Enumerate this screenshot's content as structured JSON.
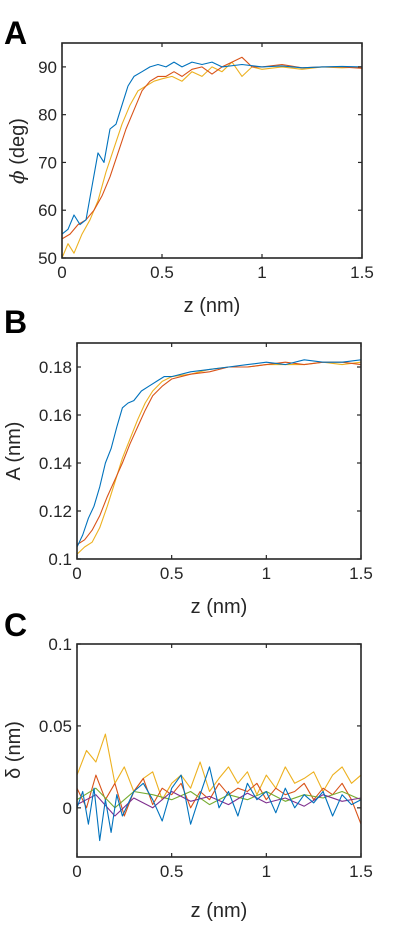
{
  "colors": {
    "blue": "#0072BD",
    "orange": "#D95319",
    "yellow": "#EDB120",
    "purple": "#7E2F8E",
    "green": "#77AC30"
  },
  "chart_data": [
    {
      "panel": "A",
      "type": "line",
      "xlabel": "z (nm)",
      "ylabel_symbol": "ϕ",
      "ylabel_rest": " (deg)",
      "xlim": [
        0,
        1.5
      ],
      "ylim": [
        50,
        95
      ],
      "xticks": [
        0,
        0.5,
        1,
        1.5
      ],
      "xtick_labels": [
        "0",
        "0.5",
        "1",
        "1.5"
      ],
      "yticks": [
        50,
        60,
        70,
        80,
        90
      ],
      "ytick_labels": [
        "50",
        "60",
        "70",
        "80",
        "90"
      ],
      "grid": false,
      "series": [
        {
          "color": "yellow",
          "x": [
            0.0,
            0.03,
            0.06,
            0.1,
            0.14,
            0.18,
            0.22,
            0.26,
            0.3,
            0.34,
            0.38,
            0.42,
            0.46,
            0.5,
            0.55,
            0.6,
            0.65,
            0.7,
            0.75,
            0.8,
            0.85,
            0.9,
            0.95,
            1.0,
            1.1,
            1.2,
            1.3,
            1.4,
            1.5
          ],
          "y": [
            50,
            53,
            51,
            55,
            58,
            62,
            68,
            73,
            78,
            82,
            85,
            86,
            87,
            87.5,
            88,
            87,
            89,
            88,
            90,
            89,
            91,
            88,
            90,
            89.5,
            90,
            89.5,
            90,
            89.8,
            90
          ]
        },
        {
          "color": "orange",
          "x": [
            0.0,
            0.04,
            0.08,
            0.12,
            0.16,
            0.2,
            0.24,
            0.28,
            0.32,
            0.36,
            0.4,
            0.44,
            0.48,
            0.52,
            0.56,
            0.6,
            0.65,
            0.7,
            0.75,
            0.8,
            0.85,
            0.9,
            0.95,
            1.0,
            1.1,
            1.2,
            1.3,
            1.4,
            1.5
          ],
          "y": [
            54,
            55,
            57,
            58,
            60,
            63,
            67,
            72,
            77,
            81,
            85,
            87,
            88,
            88,
            89,
            88,
            89.5,
            90,
            88.5,
            90,
            91,
            92,
            90,
            90,
            90.5,
            89.8,
            90,
            90,
            89.7
          ]
        },
        {
          "color": "blue",
          "x": [
            0.0,
            0.03,
            0.06,
            0.09,
            0.12,
            0.15,
            0.18,
            0.21,
            0.24,
            0.27,
            0.3,
            0.33,
            0.36,
            0.4,
            0.44,
            0.48,
            0.52,
            0.56,
            0.6,
            0.65,
            0.7,
            0.75,
            0.8,
            0.9,
            1.0,
            1.1,
            1.2,
            1.3,
            1.4,
            1.5
          ],
          "y": [
            55,
            56,
            59,
            57,
            58,
            65,
            72,
            70,
            77,
            78,
            82,
            86,
            88,
            89,
            90,
            90.5,
            90,
            91,
            90,
            91,
            90.5,
            91,
            90,
            90.5,
            90,
            90.2,
            89.8,
            90,
            90.1,
            90
          ]
        }
      ]
    },
    {
      "panel": "B",
      "type": "line",
      "xlabel": "z (nm)",
      "ylabel": "A (nm)",
      "xlim": [
        0,
        1.5
      ],
      "ylim": [
        0.1,
        0.19
      ],
      "xticks": [
        0,
        0.5,
        1,
        1.5
      ],
      "xtick_labels": [
        "0",
        "0.5",
        "1",
        "1.5"
      ],
      "yticks": [
        0.1,
        0.12,
        0.14,
        0.16,
        0.18
      ],
      "ytick_labels": [
        "0.1",
        "0.12",
        "0.14",
        "0.16",
        "0.18"
      ],
      "grid": false,
      "series": [
        {
          "color": "yellow",
          "x": [
            0.0,
            0.04,
            0.08,
            0.12,
            0.16,
            0.2,
            0.24,
            0.28,
            0.32,
            0.36,
            0.4,
            0.45,
            0.5,
            0.6,
            0.7,
            0.8,
            0.9,
            1.0,
            1.1,
            1.2,
            1.3,
            1.4,
            1.5
          ],
          "y": [
            0.102,
            0.105,
            0.107,
            0.113,
            0.122,
            0.132,
            0.142,
            0.15,
            0.158,
            0.165,
            0.17,
            0.174,
            0.176,
            0.177,
            0.179,
            0.18,
            0.18,
            0.181,
            0.181,
            0.181,
            0.182,
            0.181,
            0.182
          ]
        },
        {
          "color": "orange",
          "x": [
            0.0,
            0.04,
            0.08,
            0.12,
            0.16,
            0.2,
            0.24,
            0.28,
            0.32,
            0.36,
            0.4,
            0.45,
            0.5,
            0.6,
            0.7,
            0.8,
            0.9,
            1.0,
            1.1,
            1.2,
            1.3,
            1.4,
            1.5
          ],
          "y": [
            0.106,
            0.108,
            0.112,
            0.118,
            0.126,
            0.133,
            0.14,
            0.148,
            0.155,
            0.162,
            0.168,
            0.172,
            0.175,
            0.177,
            0.178,
            0.18,
            0.18,
            0.181,
            0.182,
            0.181,
            0.182,
            0.182,
            0.181
          ]
        },
        {
          "color": "blue",
          "x": [
            0.0,
            0.03,
            0.06,
            0.09,
            0.12,
            0.15,
            0.18,
            0.21,
            0.24,
            0.27,
            0.3,
            0.34,
            0.38,
            0.42,
            0.46,
            0.5,
            0.6,
            0.7,
            0.8,
            0.9,
            1.0,
            1.1,
            1.2,
            1.3,
            1.4,
            1.5
          ],
          "y": [
            0.105,
            0.11,
            0.117,
            0.122,
            0.13,
            0.14,
            0.146,
            0.155,
            0.163,
            0.165,
            0.166,
            0.17,
            0.172,
            0.174,
            0.176,
            0.176,
            0.178,
            0.179,
            0.18,
            0.181,
            0.182,
            0.181,
            0.183,
            0.182,
            0.182,
            0.183
          ]
        }
      ]
    },
    {
      "panel": "C",
      "type": "line",
      "xlabel": "z (nm)",
      "ylabel": "δ (nm)",
      "xlim": [
        0,
        1.5
      ],
      "ylim": [
        -0.03,
        0.1
      ],
      "xticks": [
        0,
        0.5,
        1,
        1.5
      ],
      "xtick_labels": [
        "0",
        "0.5",
        "1",
        "1.5"
      ],
      "yticks": [
        0,
        0.05,
        0.1
      ],
      "ytick_labels": [
        "0",
        "0.05",
        "0.1"
      ],
      "grid": false,
      "series": [
        {
          "color": "yellow",
          "x": [
            0.0,
            0.05,
            0.1,
            0.15,
            0.2,
            0.25,
            0.3,
            0.35,
            0.4,
            0.45,
            0.5,
            0.55,
            0.6,
            0.65,
            0.7,
            0.75,
            0.8,
            0.85,
            0.9,
            0.95,
            1.0,
            1.05,
            1.1,
            1.15,
            1.2,
            1.25,
            1.3,
            1.35,
            1.4,
            1.45,
            1.5
          ],
          "y": [
            0.02,
            0.035,
            0.028,
            0.045,
            0.015,
            0.025,
            0.01,
            0.018,
            0.022,
            0.005,
            0.015,
            0.02,
            0.012,
            0.028,
            0.01,
            0.018,
            0.025,
            0.015,
            0.022,
            0.008,
            0.02,
            0.012,
            0.025,
            0.015,
            0.018,
            0.022,
            0.01,
            0.02,
            0.025,
            0.015,
            0.02
          ]
        },
        {
          "color": "orange",
          "x": [
            0.0,
            0.05,
            0.1,
            0.15,
            0.2,
            0.25,
            0.3,
            0.35,
            0.4,
            0.45,
            0.5,
            0.55,
            0.6,
            0.65,
            0.7,
            0.75,
            0.8,
            0.85,
            0.9,
            0.95,
            1.0,
            1.05,
            1.1,
            1.15,
            1.2,
            1.25,
            1.3,
            1.35,
            1.4,
            1.45,
            1.5
          ],
          "y": [
            0.012,
            0.0,
            0.02,
            0.005,
            0.015,
            -0.005,
            0.01,
            0.018,
            0.002,
            0.012,
            0.008,
            0.015,
            0.0,
            0.01,
            0.005,
            0.015,
            0.008,
            0.012,
            0.01,
            0.015,
            0.005,
            0.012,
            0.008,
            0.01,
            0.015,
            0.005,
            0.012,
            0.008,
            0.015,
            0.005,
            -0.01
          ]
        },
        {
          "color": "green",
          "x": [
            0.0,
            0.1,
            0.2,
            0.3,
            0.4,
            0.5,
            0.6,
            0.7,
            0.8,
            0.9,
            1.0,
            1.1,
            1.2,
            1.3,
            1.4,
            1.5
          ],
          "y": [
            0.005,
            0.012,
            0.0,
            0.01,
            0.008,
            0.005,
            0.01,
            0.002,
            0.008,
            0.005,
            0.01,
            0.004,
            0.008,
            0.006,
            0.01,
            0.005
          ]
        },
        {
          "color": "purple",
          "x": [
            0.0,
            0.1,
            0.2,
            0.3,
            0.4,
            0.5,
            0.6,
            0.7,
            0.8,
            0.9,
            1.0,
            1.1,
            1.2,
            1.3,
            1.4,
            1.5
          ],
          "y": [
            0.002,
            0.008,
            -0.005,
            0.006,
            0.0,
            0.01,
            0.004,
            0.007,
            0.002,
            0.009,
            0.003,
            0.006,
            0.001,
            0.008,
            0.004,
            0.006
          ]
        },
        {
          "color": "blue",
          "x": [
            0.0,
            0.03,
            0.06,
            0.09,
            0.12,
            0.15,
            0.18,
            0.21,
            0.24,
            0.3,
            0.35,
            0.4,
            0.45,
            0.5,
            0.55,
            0.6,
            0.65,
            0.7,
            0.75,
            0.8,
            0.85,
            0.9,
            0.95,
            1.0,
            1.05,
            1.1,
            1.15,
            1.2,
            1.25,
            1.3,
            1.35,
            1.4,
            1.45,
            1.5
          ],
          "y": [
            0.0,
            0.01,
            -0.01,
            0.012,
            -0.02,
            0.005,
            -0.015,
            0.008,
            -0.005,
            0.01,
            0.015,
            0.005,
            -0.008,
            0.012,
            0.02,
            -0.01,
            0.008,
            0.025,
            0.0,
            0.01,
            -0.005,
            0.015,
            0.005,
            0.01,
            -0.003,
            0.012,
            0.0,
            0.008,
            0.003,
            0.01,
            -0.005,
            0.008,
            0.002,
            0.005
          ]
        }
      ]
    }
  ]
}
